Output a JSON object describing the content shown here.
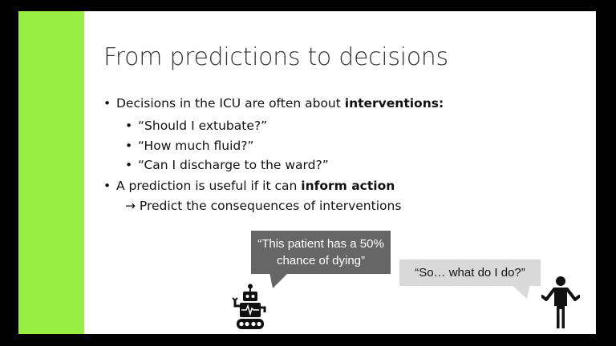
{
  "slide": {
    "title": "From predictions to decisions",
    "bullets": [
      {
        "pre": "Decisions in the ICU are often about ",
        "bold": "interventions:"
      },
      {
        "pre": "A prediction is useful if it can ",
        "bold": "inform action"
      }
    ],
    "sub_bullets": [
      "“Should I extubate?”",
      "“How much fluid?”",
      "“Can I discharge to the ward?”"
    ],
    "arrow_line": "→ Predict the consequences of interventions",
    "bubble_robot": [
      "“This patient has a 50%",
      "chance of dying”"
    ],
    "bubble_person": "“So… what do I do?”"
  },
  "colors": {
    "accent": "#99ee44",
    "dark_bubble": "#666666",
    "light_bubble": "#d9d9d9"
  },
  "icons": {
    "robot": "robot-icon",
    "person": "person-shrugging-icon"
  }
}
